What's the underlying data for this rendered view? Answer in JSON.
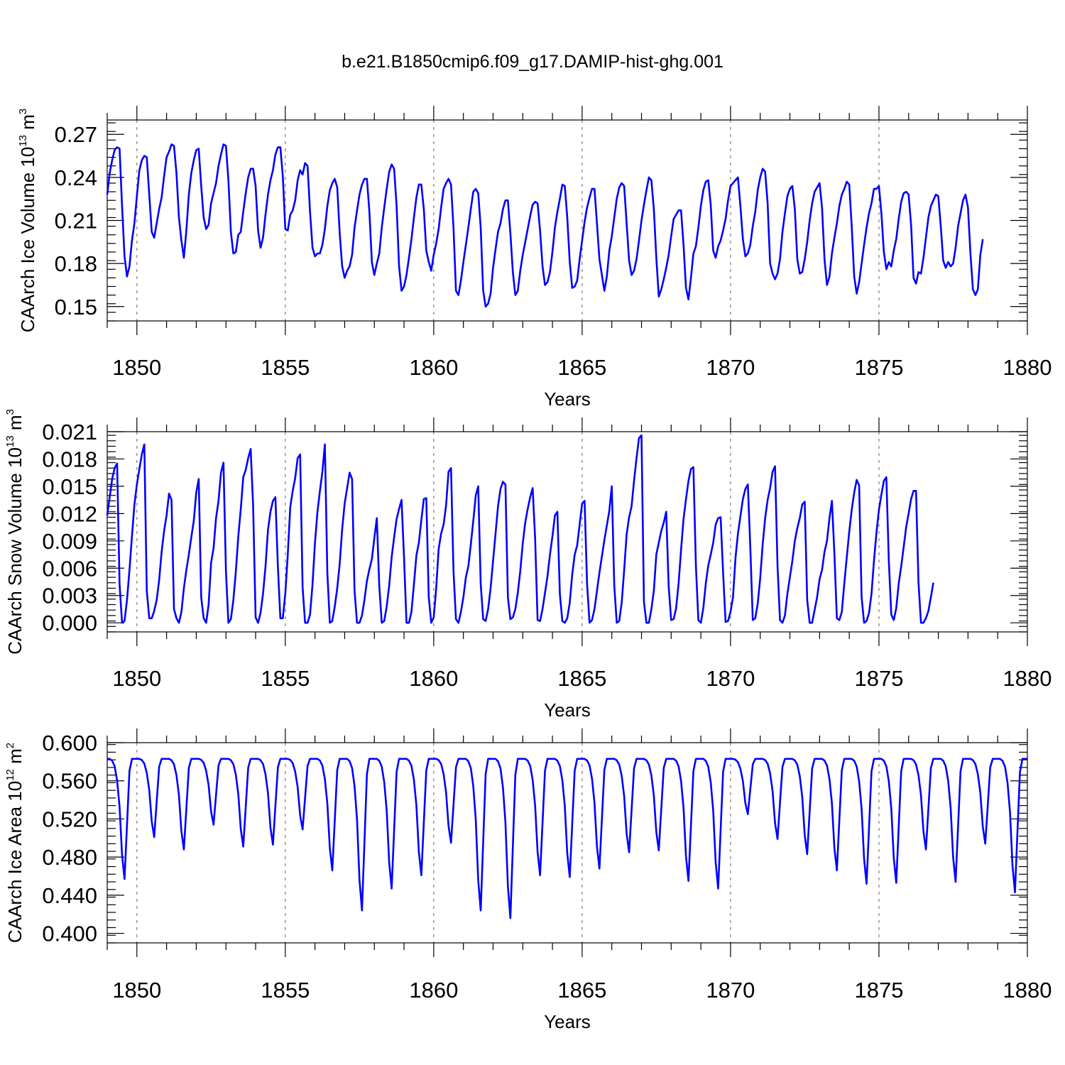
{
  "figure": {
    "title": "b.e21.B1850cmip6.f09_g17.DAMIP-hist-ghg.001"
  },
  "chart_data": [
    {
      "type": "line",
      "id": "ice-volume",
      "ylabel": {
        "main": "CAArch Ice Volume 10",
        "exp": "13",
        "unit": " m",
        "unit_exp": "3"
      },
      "xlabel": "Years",
      "xlim": [
        1849.0,
        1880.0
      ],
      "ylim": [
        0.14,
        0.28
      ],
      "xticks": [
        "1850",
        "1855",
        "1860",
        "1865",
        "1870",
        "1875",
        "1880"
      ],
      "xtick_values": [
        1850,
        1855,
        1860,
        1865,
        1870,
        1875,
        1880
      ],
      "yticks": [
        "0.15",
        "0.18",
        "0.21",
        "0.24",
        "0.27"
      ],
      "ytick_values": [
        0.15,
        0.18,
        0.21,
        0.24,
        0.27
      ],
      "series_color": "#0000ff",
      "start_year": 1849.0,
      "step": 0.08333,
      "values": [
        0.228,
        0.243,
        0.252,
        0.259,
        0.261,
        0.26,
        0.22,
        0.185,
        0.171,
        0.178,
        0.196,
        0.208,
        0.227,
        0.245,
        0.252,
        0.255,
        0.254,
        0.228,
        0.202,
        0.198,
        0.208,
        0.218,
        0.226,
        0.241,
        0.254,
        0.258,
        0.263,
        0.262,
        0.243,
        0.212,
        0.196,
        0.184,
        0.203,
        0.228,
        0.243,
        0.252,
        0.259,
        0.26,
        0.234,
        0.212,
        0.204,
        0.207,
        0.222,
        0.229,
        0.236,
        0.248,
        0.256,
        0.263,
        0.262,
        0.238,
        0.202,
        0.187,
        0.188,
        0.2,
        0.202,
        0.216,
        0.229,
        0.24,
        0.246,
        0.246,
        0.234,
        0.203,
        0.191,
        0.198,
        0.214,
        0.228,
        0.238,
        0.245,
        0.256,
        0.261,
        0.261,
        0.241,
        0.204,
        0.203,
        0.214,
        0.217,
        0.224,
        0.238,
        0.245,
        0.242,
        0.25,
        0.248,
        0.216,
        0.191,
        0.185,
        0.187,
        0.187,
        0.193,
        0.204,
        0.22,
        0.231,
        0.236,
        0.239,
        0.233,
        0.201,
        0.178,
        0.17,
        0.175,
        0.178,
        0.186,
        0.205,
        0.217,
        0.228,
        0.235,
        0.239,
        0.239,
        0.216,
        0.181,
        0.172,
        0.18,
        0.187,
        0.205,
        0.219,
        0.232,
        0.244,
        0.249,
        0.246,
        0.22,
        0.178,
        0.161,
        0.164,
        0.172,
        0.184,
        0.197,
        0.212,
        0.226,
        0.235,
        0.235,
        0.218,
        0.189,
        0.181,
        0.175,
        0.186,
        0.194,
        0.204,
        0.219,
        0.232,
        0.236,
        0.239,
        0.235,
        0.205,
        0.161,
        0.158,
        0.168,
        0.181,
        0.193,
        0.205,
        0.218,
        0.23,
        0.232,
        0.229,
        0.205,
        0.161,
        0.15,
        0.152,
        0.159,
        0.177,
        0.19,
        0.202,
        0.208,
        0.218,
        0.224,
        0.224,
        0.201,
        0.174,
        0.158,
        0.161,
        0.175,
        0.186,
        0.195,
        0.204,
        0.213,
        0.221,
        0.223,
        0.222,
        0.203,
        0.178,
        0.165,
        0.167,
        0.174,
        0.188,
        0.205,
        0.216,
        0.225,
        0.235,
        0.234,
        0.212,
        0.181,
        0.163,
        0.164,
        0.168,
        0.183,
        0.196,
        0.209,
        0.219,
        0.226,
        0.232,
        0.232,
        0.208,
        0.183,
        0.172,
        0.161,
        0.171,
        0.189,
        0.199,
        0.212,
        0.225,
        0.233,
        0.236,
        0.234,
        0.208,
        0.182,
        0.172,
        0.175,
        0.183,
        0.196,
        0.21,
        0.221,
        0.231,
        0.24,
        0.238,
        0.218,
        0.184,
        0.157,
        0.162,
        0.169,
        0.177,
        0.186,
        0.199,
        0.211,
        0.214,
        0.217,
        0.217,
        0.193,
        0.163,
        0.155,
        0.17,
        0.187,
        0.192,
        0.205,
        0.22,
        0.231,
        0.237,
        0.238,
        0.221,
        0.189,
        0.184,
        0.192,
        0.196,
        0.203,
        0.211,
        0.224,
        0.234,
        0.236,
        0.238,
        0.24,
        0.22,
        0.197,
        0.185,
        0.187,
        0.193,
        0.206,
        0.216,
        0.231,
        0.24,
        0.246,
        0.244,
        0.222,
        0.18,
        0.173,
        0.169,
        0.173,
        0.183,
        0.202,
        0.215,
        0.227,
        0.232,
        0.234,
        0.218,
        0.183,
        0.173,
        0.174,
        0.183,
        0.195,
        0.21,
        0.222,
        0.23,
        0.233,
        0.236,
        0.219,
        0.183,
        0.165,
        0.171,
        0.187,
        0.198,
        0.208,
        0.22,
        0.228,
        0.232,
        0.237,
        0.235,
        0.206,
        0.171,
        0.159,
        0.167,
        0.18,
        0.193,
        0.205,
        0.215,
        0.222,
        0.232,
        0.232,
        0.234,
        0.215,
        0.188,
        0.176,
        0.181,
        0.178,
        0.189,
        0.197,
        0.211,
        0.223,
        0.229,
        0.23,
        0.228,
        0.207,
        0.17,
        0.166,
        0.174,
        0.173,
        0.184,
        0.198,
        0.212,
        0.22,
        0.224,
        0.228,
        0.227,
        0.206,
        0.182,
        0.177,
        0.181,
        0.178,
        0.18,
        0.191,
        0.206,
        0.215,
        0.224,
        0.228,
        0.219,
        0.187,
        0.162,
        0.158,
        0.162,
        0.186,
        0.197
      ]
    },
    {
      "type": "line",
      "id": "snow-volume",
      "ylabel": {
        "main": "CAArch Snow Volume 10",
        "exp": "13",
        "unit": " m",
        "unit_exp": "3"
      },
      "xlabel": "Years",
      "xlim": [
        1849.0,
        1880.0
      ],
      "ylim": [
        -0.001,
        0.021
      ],
      "xticks": [
        "1850",
        "1855",
        "1860",
        "1865",
        "1870",
        "1875",
        "1880"
      ],
      "xtick_values": [
        1850,
        1855,
        1860,
        1865,
        1870,
        1875,
        1880
      ],
      "yticks": [
        "0.000",
        "0.003",
        "0.006",
        "0.009",
        "0.012",
        "0.015",
        "0.018",
        "0.021"
      ],
      "ytick_values": [
        0.0,
        0.003,
        0.006,
        0.009,
        0.012,
        0.015,
        0.018,
        0.021
      ],
      "series_color": "#0000ff",
      "start_year": 1849.0,
      "step": 0.08333,
      "values": [
        0.0118,
        0.0138,
        0.0158,
        0.017,
        0.0175,
        0.0042,
        0.0,
        0.0002,
        0.0025,
        0.0058,
        0.0095,
        0.013,
        0.0152,
        0.0169,
        0.0185,
        0.0196,
        0.0035,
        0.0005,
        0.0005,
        0.0013,
        0.0025,
        0.0047,
        0.0078,
        0.0101,
        0.0118,
        0.0142,
        0.0135,
        0.0015,
        0.0005,
        0.0,
        0.0012,
        0.0038,
        0.0058,
        0.0075,
        0.0094,
        0.0112,
        0.0143,
        0.0158,
        0.0028,
        0.0005,
        0.0,
        0.002,
        0.0066,
        0.0082,
        0.0115,
        0.0134,
        0.0165,
        0.0176,
        0.0057,
        0.0,
        0.0004,
        0.0025,
        0.0056,
        0.0095,
        0.0125,
        0.016,
        0.0168,
        0.0181,
        0.0191,
        0.0128,
        0.0006,
        0.0,
        0.0011,
        0.0032,
        0.0062,
        0.0102,
        0.0122,
        0.0134,
        0.0138,
        0.0062,
        0.0005,
        0.0005,
        0.0032,
        0.0075,
        0.0127,
        0.0145,
        0.0159,
        0.0181,
        0.0185,
        0.0039,
        0.0,
        0.0,
        0.0009,
        0.0042,
        0.0088,
        0.0122,
        0.0145,
        0.0166,
        0.0196,
        0.0055,
        0.0,
        0.0002,
        0.0018,
        0.0038,
        0.0065,
        0.0103,
        0.0131,
        0.0148,
        0.0165,
        0.0158,
        0.0035,
        0.0,
        0.0,
        0.0008,
        0.0025,
        0.0046,
        0.0059,
        0.007,
        0.0093,
        0.0115,
        0.004,
        0.0,
        0.0002,
        0.0018,
        0.0041,
        0.0072,
        0.0094,
        0.0114,
        0.0125,
        0.0135,
        0.0072,
        0.0,
        0.0,
        0.0012,
        0.0042,
        0.0074,
        0.0088,
        0.0113,
        0.0136,
        0.0137,
        0.0028,
        0.0,
        0.0006,
        0.0038,
        0.0081,
        0.0098,
        0.0108,
        0.0129,
        0.0166,
        0.017,
        0.0057,
        0.0004,
        0.0,
        0.0012,
        0.0028,
        0.005,
        0.0062,
        0.0086,
        0.0112,
        0.014,
        0.015,
        0.0043,
        0.0004,
        0.0002,
        0.0015,
        0.0038,
        0.0068,
        0.0098,
        0.0128,
        0.0147,
        0.0155,
        0.0152,
        0.0028,
        0.0004,
        0.0006,
        0.0015,
        0.0033,
        0.0057,
        0.0087,
        0.011,
        0.0125,
        0.0138,
        0.0148,
        0.0093,
        0.0003,
        0.0002,
        0.0015,
        0.0033,
        0.0051,
        0.0075,
        0.0095,
        0.0118,
        0.0122,
        0.0032,
        0.0002,
        0.0,
        0.0005,
        0.0022,
        0.0053,
        0.0075,
        0.0085,
        0.0108,
        0.0131,
        0.0134,
        0.0043,
        0.0,
        0.0003,
        0.0015,
        0.0035,
        0.0055,
        0.0073,
        0.0091,
        0.0107,
        0.0123,
        0.015,
        0.0041,
        0.0,
        0.0002,
        0.0022,
        0.0058,
        0.0097,
        0.0116,
        0.0128,
        0.0156,
        0.0181,
        0.0203,
        0.0206,
        0.0023,
        0.0,
        0.0,
        0.0015,
        0.0035,
        0.0075,
        0.0088,
        0.0101,
        0.011,
        0.0122,
        0.004,
        0.0003,
        0.0004,
        0.0016,
        0.0043,
        0.008,
        0.0114,
        0.0136,
        0.0156,
        0.0169,
        0.0171,
        0.0063,
        0.0003,
        0.0,
        0.0016,
        0.0043,
        0.0063,
        0.0075,
        0.0088,
        0.0108,
        0.0115,
        0.0116,
        0.0055,
        0.0001,
        0.0002,
        0.0012,
        0.0028,
        0.0071,
        0.0098,
        0.0117,
        0.0136,
        0.0147,
        0.0152,
        0.0083,
        0.0003,
        0.0005,
        0.0021,
        0.0049,
        0.0086,
        0.0115,
        0.0135,
        0.0148,
        0.0166,
        0.0172,
        0.0063,
        0.0003,
        0.0,
        0.0008,
        0.0032,
        0.005,
        0.0068,
        0.009,
        0.0104,
        0.0115,
        0.013,
        0.0133,
        0.0025,
        0.0,
        0.0,
        0.0014,
        0.0028,
        0.0048,
        0.0058,
        0.0078,
        0.009,
        0.0115,
        0.0134,
        0.0076,
        0.0005,
        0.0003,
        0.0012,
        0.0043,
        0.0072,
        0.01,
        0.0124,
        0.0143,
        0.0157,
        0.0151,
        0.0028,
        0.0,
        0.0002,
        0.0011,
        0.0032,
        0.0068,
        0.0099,
        0.0124,
        0.0141,
        0.0156,
        0.016,
        0.0068,
        0.0009,
        0.0003,
        0.0016,
        0.0043,
        0.0062,
        0.0083,
        0.0105,
        0.012,
        0.0136,
        0.0145,
        0.0145,
        0.0044,
        0.0,
        0.0,
        0.0005,
        0.0013,
        0.0028,
        0.0044
      ]
    },
    {
      "type": "line",
      "id": "ice-area",
      "ylabel": {
        "main": "CAArch Ice Area 10",
        "exp": "12",
        "unit": " m",
        "unit_exp": "2"
      },
      "xlabel": "Years",
      "xlim": [
        1849.0,
        1880.0
      ],
      "ylim": [
        0.39,
        0.6
      ],
      "xticks": [
        "1850",
        "1855",
        "1860",
        "1865",
        "1870",
        "1875",
        "1880"
      ],
      "xtick_values": [
        1850,
        1855,
        1860,
        1865,
        1870,
        1875,
        1880
      ],
      "yticks": [
        "0.400",
        "0.440",
        "0.480",
        "0.520",
        "0.560",
        "0.600"
      ],
      "ytick_values": [
        0.4,
        0.44,
        0.48,
        0.52,
        0.56,
        0.6
      ],
      "series_color": "#0000ff",
      "start_year": 1849.0,
      "step": 0.08333,
      "min_values": [
        0.457,
        0.501,
        0.488,
        0.514,
        0.491,
        0.493,
        0.509,
        0.466,
        0.424,
        0.447,
        0.461,
        0.495,
        0.424,
        0.416,
        0.461,
        0.459,
        0.468,
        0.485,
        0.487,
        0.455,
        0.447,
        0.525,
        0.499,
        0.483,
        0.466,
        0.452,
        0.453,
        0.488,
        0.454,
        0.494,
        0.443
      ],
      "max_value": 0.583
    }
  ]
}
